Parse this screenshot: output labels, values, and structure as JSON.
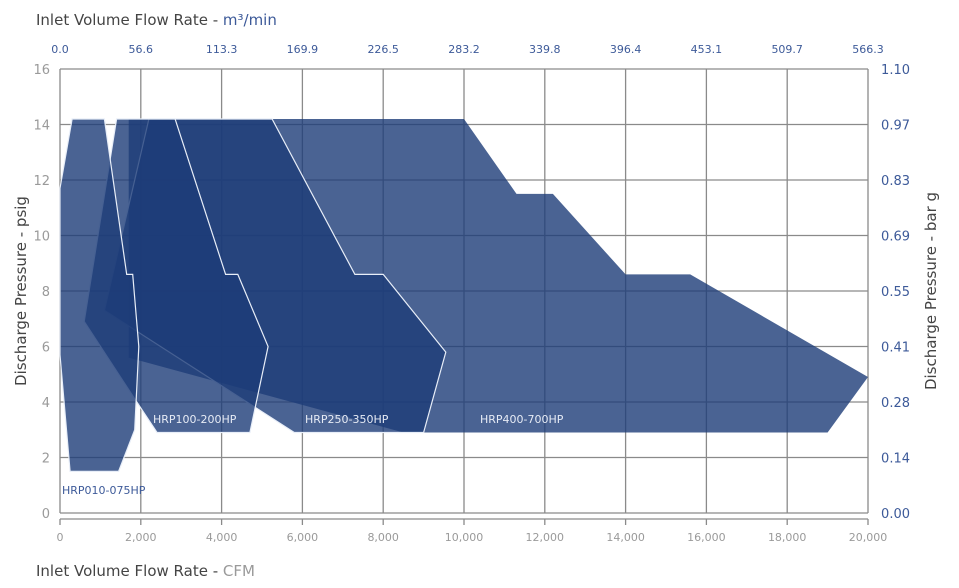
{
  "chart_data": {
    "type": "area",
    "top_title": {
      "text": "Inlet Volume Flow Rate - ",
      "unit": "m³/min"
    },
    "bottom_title": {
      "text": "Inlet Volume Flow Rate - ",
      "unit": "CFM"
    },
    "left_title": "Discharge Pressure - psig",
    "right_title": "Discharge Pressure - bar g",
    "xlim": [
      0,
      20000
    ],
    "ylim": [
      0,
      16
    ],
    "grid": true,
    "x_ticks": [
      0,
      2000,
      4000,
      6000,
      8000,
      10000,
      12000,
      14000,
      16000,
      18000,
      20000
    ],
    "x_tick_labels": [
      "0",
      "2,000",
      "4,000",
      "6,000",
      "8,000",
      "10,000",
      "12,000",
      "14,000",
      "16,000",
      "18,000",
      "20,000"
    ],
    "x2_tick_labels": [
      "0.0",
      "56.6",
      "113.3",
      "169.9",
      "226.5",
      "283.2",
      "339.8",
      "396.4",
      "453.1",
      "509.7",
      "566.3"
    ],
    "y_ticks": [
      0,
      2,
      4,
      6,
      8,
      10,
      12,
      14,
      16
    ],
    "y_tick_labels": [
      "0",
      "2",
      "4",
      "6",
      "8",
      "10",
      "12",
      "14",
      "16"
    ],
    "y2_tick_labels": [
      "0.00",
      "0.14",
      "0.28",
      "0.41",
      "0.55",
      "0.69",
      "0.83",
      "0.97",
      "1.10"
    ],
    "colors": {
      "fill": "#1d3c78",
      "accent_text": "#3d5a99",
      "muted_text": "#9a9a9a",
      "grid": "#8a8a8a"
    },
    "series": [
      {
        "name": "HRP400-700HP",
        "points": [
          [
            1700,
            14.2
          ],
          [
            10000,
            14.2
          ],
          [
            11300,
            11.5
          ],
          [
            12200,
            11.5
          ],
          [
            14000,
            8.6
          ],
          [
            15600,
            8.6
          ],
          [
            20000,
            4.9
          ],
          [
            19000,
            2.9
          ],
          [
            8500,
            2.9
          ],
          [
            1700,
            5.6
          ]
        ]
      },
      {
        "name": "HRP250-350HP",
        "points": [
          [
            2200,
            14.2
          ],
          [
            5250,
            14.2
          ],
          [
            7300,
            8.6
          ],
          [
            8000,
            8.6
          ],
          [
            9550,
            5.8
          ],
          [
            9000,
            2.9
          ],
          [
            5800,
            2.9
          ],
          [
            1100,
            7.3
          ]
        ]
      },
      {
        "name": "HRP100-200HP",
        "points": [
          [
            1400,
            14.2
          ],
          [
            2850,
            14.2
          ],
          [
            4100,
            8.6
          ],
          [
            4400,
            8.6
          ],
          [
            5150,
            6.0
          ],
          [
            4700,
            2.9
          ],
          [
            2400,
            2.9
          ],
          [
            1900,
            4.0
          ],
          [
            600,
            6.9
          ]
        ]
      },
      {
        "name": "HRP010-075HP",
        "points": [
          [
            0,
            11.7
          ],
          [
            300,
            14.2
          ],
          [
            1100,
            14.2
          ],
          [
            1650,
            8.6
          ],
          [
            1800,
            8.6
          ],
          [
            1950,
            6.0
          ],
          [
            1850,
            3.0
          ],
          [
            1450,
            1.5
          ],
          [
            250,
            1.5
          ],
          [
            0,
            5.7
          ]
        ]
      }
    ]
  }
}
